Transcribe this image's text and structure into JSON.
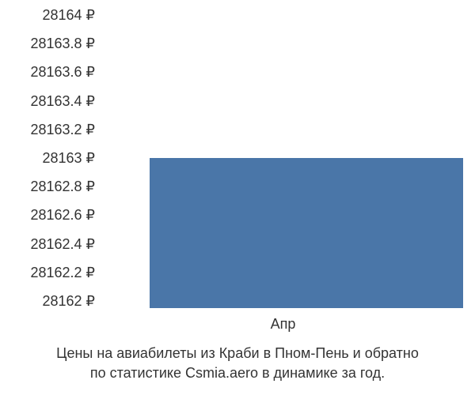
{
  "chart": {
    "type": "bar",
    "y_ticks": [
      "28164 ₽",
      "28163.8 ₽",
      "28163.6 ₽",
      "28163.4 ₽",
      "28163.2 ₽",
      "28163 ₽",
      "28162.8 ₽",
      "28162.6 ₽",
      "28162.4 ₽",
      "28162.2 ₽",
      "28162 ₽"
    ],
    "x_tick": "Апр",
    "bar": {
      "value": 28163,
      "color": "#4a76a8",
      "left_pct": 13,
      "width_pct": 87,
      "bottom_pct": 0,
      "height_pct": 50
    },
    "ylim": [
      28162,
      28164
    ],
    "background_color": "#ffffff",
    "tick_fontsize": 18,
    "tick_color": "#333333"
  },
  "caption": {
    "line1": "Цены на авиабилеты из Краби в Пном-Пень и обратно",
    "line2": "по статистике Csmia.aero в динамике за год."
  }
}
